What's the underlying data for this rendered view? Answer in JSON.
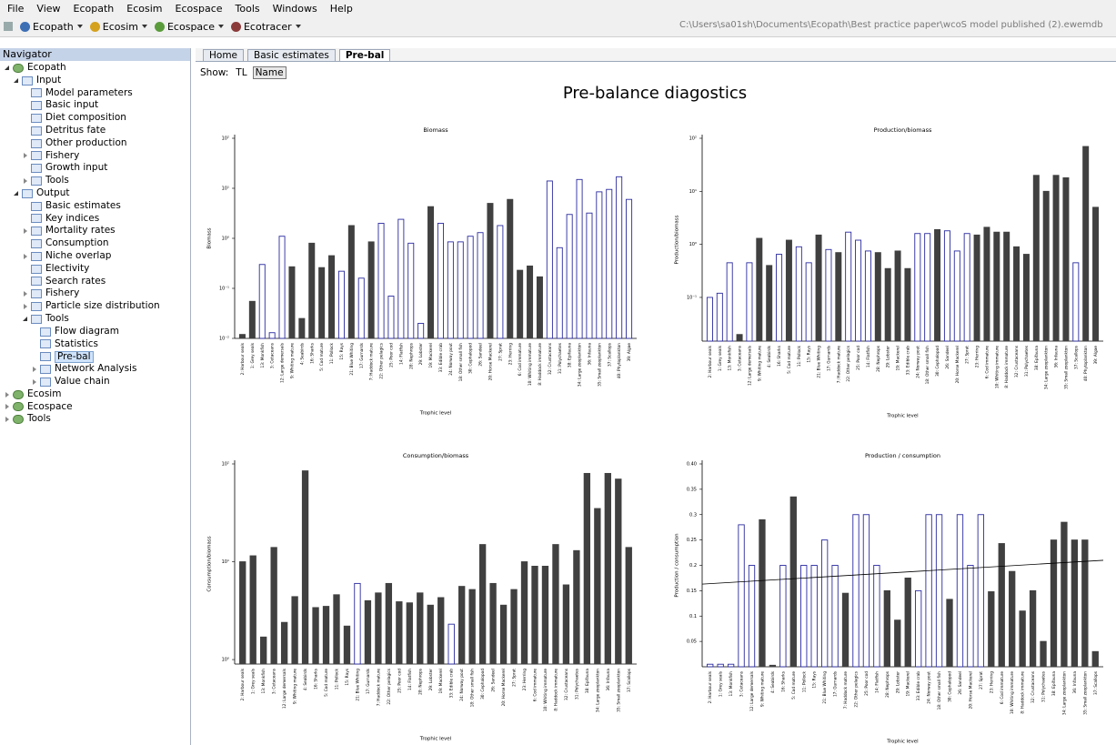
{
  "menu": [
    "File",
    "View",
    "Ecopath",
    "Ecosim",
    "Ecospace",
    "Tools",
    "Windows",
    "Help"
  ],
  "toolbar": {
    "items": [
      "Ecopath",
      "Ecosim",
      "Ecospace",
      "Ecotracer"
    ],
    "path": "C:\\Users\\sa01sh\\Documents\\Ecopath\\Best practice paper\\wcoS model published (2).ewemdb"
  },
  "navigator": {
    "title": "Navigator",
    "items": [
      {
        "label": "Ecopath",
        "expanded": true,
        "children": [
          {
            "label": "Input",
            "expanded": true,
            "children": [
              {
                "label": "Model parameters"
              },
              {
                "label": "Basic input"
              },
              {
                "label": "Diet composition"
              },
              {
                "label": "Detritus fate"
              },
              {
                "label": "Other production"
              },
              {
                "label": "Fishery",
                "expanded": false
              },
              {
                "label": "Growth input"
              },
              {
                "label": "Tools",
                "expanded": false
              }
            ]
          },
          {
            "label": "Output",
            "expanded": true,
            "children": [
              {
                "label": "Basic estimates"
              },
              {
                "label": "Key indices"
              },
              {
                "label": "Mortality rates",
                "expanded": false
              },
              {
                "label": "Consumption"
              },
              {
                "label": "Niche overlap",
                "expanded": false
              },
              {
                "label": "Electivity"
              },
              {
                "label": "Search rates"
              },
              {
                "label": "Fishery",
                "expanded": false
              },
              {
                "label": "Particle size distribution",
                "expanded": false
              },
              {
                "label": "Tools",
                "expanded": true,
                "children": [
                  {
                    "label": "Flow diagram"
                  },
                  {
                    "label": "Statistics"
                  },
                  {
                    "label": "Pre-bal",
                    "selected": true
                  },
                  {
                    "label": "Network Analysis",
                    "expanded": false
                  },
                  {
                    "label": "Value chain",
                    "expanded": false
                  }
                ]
              }
            ]
          }
        ]
      },
      {
        "label": "Ecosim",
        "expanded": false
      },
      {
        "label": "Ecospace",
        "expanded": false
      },
      {
        "label": "Tools",
        "expanded": false
      }
    ]
  },
  "tabs": {
    "items": [
      "Home",
      "Basic estimates",
      "Pre-bal"
    ],
    "active": 2
  },
  "show": {
    "label": "Show:",
    "options": [
      "TL",
      "Name"
    ],
    "active": 1
  },
  "page_title": "Pre-balance diagostics",
  "chart_data": [
    {
      "type": "bar",
      "title": "Biomass",
      "xlabel": "Trophic level",
      "ylabel": "Biomass",
      "log_scale": true,
      "ylim": [
        0.01,
        100
      ],
      "yticks": [
        {
          "value": 0.01,
          "label": "10⁻²"
        },
        {
          "value": 0.1,
          "label": "10⁻¹"
        },
        {
          "value": 1,
          "label": "10⁰"
        },
        {
          "value": 10,
          "label": "10¹"
        },
        {
          "value": 100,
          "label": "10²"
        }
      ],
      "color": "#404040",
      "hollow_color": "#2a2aa0",
      "categories": [
        "2: Harbour seals",
        "1: Grey seals",
        "13: Monkfish",
        "3: Cetaceans",
        "12: Large demersals",
        "9: Whiting mature",
        "4: Seabirds",
        "16: Sharks",
        "5: Cod mature",
        "11: Pollock",
        "15: Rays",
        "21: Blue Whiting",
        "17: Gurnards",
        "7: Haddock mature",
        "22: Other pelagics",
        "25: Poor cod",
        "14: Flatfish",
        "28: Nephrops",
        "29: Lobster",
        "19: Mackerel",
        "33: Edible crab",
        "24: Norway pout",
        "18: Other small fish",
        "30: Cephalopod",
        "26: Sandeel",
        "20: Horse Mackerel",
        "27: Sprat",
        "23: Herring",
        "6: Cod immature",
        "10: Whiting immature",
        "8: Haddock immature",
        "32: Crustaceans",
        "31: Polychaetes",
        "38: Epifauna",
        "34: Large zooplankton",
        "36: Infauna",
        "35: Small zooplankton",
        "37: Scallops",
        "40: Phytoplankton",
        "39: Algae"
      ],
      "values": [
        0.012,
        0.055,
        0.3,
        0.013,
        1.1,
        0.27,
        0.025,
        0.8,
        0.26,
        0.45,
        0.22,
        1.8,
        0.16,
        0.85,
        2.0,
        0.07,
        2.4,
        0.8,
        0.02,
        4.3,
        2.0,
        0.85,
        0.85,
        1.1,
        1.3,
        5,
        1.8,
        6,
        0.23,
        0.28,
        0.17,
        14,
        0.65,
        3,
        15,
        3.2,
        8.5,
        9.5,
        17,
        6
      ],
      "hollow": [
        false,
        false,
        true,
        true,
        true,
        false,
        false,
        false,
        false,
        false,
        true,
        false,
        true,
        false,
        true,
        true,
        true,
        true,
        true,
        false,
        true,
        true,
        true,
        true,
        true,
        false,
        true,
        false,
        false,
        false,
        false,
        true,
        true,
        true,
        true,
        true,
        true,
        true,
        true,
        true
      ]
    },
    {
      "type": "bar",
      "title": "Production/biomass",
      "xlabel": "Trophic level",
      "ylabel": "Production/biomass",
      "log_scale": true,
      "ylim": [
        0.015,
        100
      ],
      "yticks": [
        {
          "value": 0.1,
          "label": "10⁻¹"
        },
        {
          "value": 1,
          "label": "10⁰"
        },
        {
          "value": 10,
          "label": "10¹"
        },
        {
          "value": 100,
          "label": "10²"
        }
      ],
      "color": "#404040",
      "hollow_color": "#2a2aa0",
      "categories": [
        "2: Harbour seals",
        "1: Grey seals",
        "13: Monkfish",
        "3: Cetaceans",
        "12: Large demersals",
        "9: Whiting mature",
        "4: Seabirds",
        "16: Sharks",
        "5: Cod mature",
        "11: Pollock",
        "15: Rays",
        "21: Blue Whiting",
        "17: Gurnards",
        "7: Haddock mature",
        "22: Other pelagics",
        "25: Poor cod",
        "14: Flatfish",
        "28: Nephrops",
        "29: Lobster",
        "19: Mackerel",
        "33: Edible crab",
        "24: Norway pout",
        "18: Other small fish",
        "30: Cephalopod",
        "26: Sandeel",
        "20: Horse Mackerel",
        "27: Sprat",
        "23: Herring",
        "6: Cod immature",
        "10: Whiting immature",
        "8: Haddock immature",
        "32: Crustaceans",
        "31: Polychaetes",
        "38: Epifauna",
        "34: Large zooplankton",
        "36: Infauna",
        "35: Small zooplankton",
        "37: Scallops",
        "40: Phytoplankton",
        "39: Algae"
      ],
      "values": [
        0.1,
        0.12,
        0.45,
        0.02,
        0.45,
        1.3,
        0.4,
        0.65,
        1.2,
        0.9,
        0.45,
        1.5,
        0.8,
        0.7,
        1.7,
        1.2,
        0.75,
        0.7,
        0.35,
        0.75,
        0.35,
        1.6,
        1.6,
        1.9,
        1.8,
        0.75,
        1.6,
        1.5,
        2.1,
        1.7,
        1.7,
        0.9,
        0.65,
        20,
        10,
        20,
        18,
        0.45,
        70,
        5
      ],
      "hollow": [
        true,
        true,
        true,
        false,
        true,
        false,
        false,
        true,
        false,
        true,
        true,
        false,
        true,
        false,
        true,
        true,
        true,
        false,
        false,
        false,
        false,
        true,
        true,
        false,
        true,
        true,
        true,
        false,
        false,
        false,
        false,
        false,
        false,
        false,
        false,
        false,
        false,
        true,
        false,
        false
      ]
    },
    {
      "type": "bar",
      "title": "Consumption/biomass",
      "xlabel": "Trophic level",
      "ylabel": "Consumption/biomass",
      "log_scale": true,
      "ylim": [
        0.9,
        100
      ],
      "yticks": [
        {
          "value": 1,
          "label": "10⁰"
        },
        {
          "value": 10,
          "label": "10¹"
        },
        {
          "value": 100,
          "label": "10²"
        }
      ],
      "color": "#404040",
      "hollow_color": "#2a2aa0",
      "categories": [
        "2: Harbour seals",
        "1: Grey seals",
        "13: Monkfish",
        "3: Cetaceans",
        "12: Large demersals",
        "9: Whiting mature",
        "4: Seabirds",
        "16: Sharks",
        "5: Cod mature",
        "11: Pollock",
        "15: Rays",
        "21: Blue Whiting",
        "17: Gurnards",
        "7: Haddock mature",
        "22: Other pelagics",
        "25: Poor cod",
        "14: Flatfish",
        "28: Nephrops",
        "29: Lobster",
        "19: Mackerel",
        "33: Edible crab",
        "24: Norway pout",
        "18: Other small fish",
        "30: Cephalopod",
        "26: Sandeel",
        "20: Horse Mackerel",
        "27: Sprat",
        "23: Herring",
        "6: Cod immature",
        "10: Whiting immature",
        "8: Haddock immature",
        "32: Crustaceans",
        "31: Polychaetes",
        "38: Epifauna",
        "34: Large zooplankton",
        "36: Infauna",
        "35: Small zooplankton",
        "37: Scallops"
      ],
      "values": [
        10,
        11.5,
        1.7,
        14,
        2.4,
        4.4,
        85,
        3.4,
        3.5,
        4.6,
        2.2,
        6,
        4,
        4.8,
        6,
        3.9,
        3.8,
        4.8,
        3.6,
        4.3,
        2.3,
        5.6,
        5.2,
        15,
        6,
        3.6,
        5.2,
        10,
        9,
        9,
        15,
        5.8,
        13,
        80,
        35,
        80,
        70,
        14
      ],
      "hollow": [
        false,
        false,
        false,
        false,
        false,
        false,
        false,
        false,
        false,
        false,
        false,
        true,
        false,
        false,
        false,
        false,
        false,
        false,
        false,
        false,
        true,
        false,
        false,
        false,
        false,
        false,
        false,
        false,
        false,
        false,
        false,
        false,
        false,
        false,
        false,
        false,
        false,
        false
      ]
    },
    {
      "type": "bar",
      "title": "Production / consumption",
      "xlabel": "Trophic level",
      "ylabel": "Production / consumption",
      "log_scale": false,
      "ylim": [
        0,
        0.4
      ],
      "yticks": [
        0.05,
        0.1,
        0.15,
        0.2,
        0.25,
        0.3,
        0.35,
        {
          "value": 0.4,
          "label": "0.40"
        }
      ],
      "color": "#404040",
      "hollow_color": "#2a2aa0",
      "categories": [
        "2: Harbour seals",
        "1: Grey seals",
        "13: Monkfish",
        "3: Cetaceans",
        "12: Large demersals",
        "9: Whiting mature",
        "4: Seabirds",
        "16: Sharks",
        "5: Cod mature",
        "11: Pollock",
        "15: Rays",
        "21: Blue Whiting",
        "17: Gurnards",
        "7: Haddock mature",
        "22: Other pelagics",
        "25: Poor cod",
        "14: Flatfish",
        "28: Nephrops",
        "29: Lobster",
        "19: Mackerel",
        "33: Edible crab",
        "24: Norway pout",
        "18: Other small fish",
        "30: Cephalopod",
        "26: Sandeel",
        "20: Horse Mackerel",
        "27: Sprat",
        "23: Herring",
        "6: Cod immature",
        "10: Whiting immature",
        "8: Haddock immature",
        "32: Crustaceans",
        "31: Polychaetes",
        "38: Epifauna",
        "34: Large zooplankton",
        "36: Infauna",
        "35: Small zooplankton",
        "37: Scallops"
      ],
      "values": [
        0.005,
        0.005,
        0.005,
        0.28,
        0.2,
        0.29,
        0.003,
        0.2,
        0.335,
        0.2,
        0.2,
        0.25,
        0.2,
        0.145,
        0.3,
        0.3,
        0.2,
        0.15,
        0.092,
        0.175,
        0.15,
        0.3,
        0.3,
        0.133,
        0.3,
        0.2,
        0.3,
        0.148,
        0.243,
        0.188,
        0.11,
        0.15,
        0.05,
        0.25,
        0.285,
        0.25,
        0.25,
        0.03
      ],
      "hollow": [
        true,
        true,
        true,
        true,
        true,
        false,
        false,
        true,
        false,
        true,
        true,
        true,
        true,
        false,
        true,
        true,
        true,
        false,
        false,
        false,
        true,
        true,
        true,
        false,
        true,
        true,
        true,
        false,
        false,
        false,
        false,
        false,
        false,
        false,
        false,
        false,
        false,
        false
      ],
      "trend_line": {
        "start": 0.163,
        "end": 0.21
      }
    }
  ]
}
